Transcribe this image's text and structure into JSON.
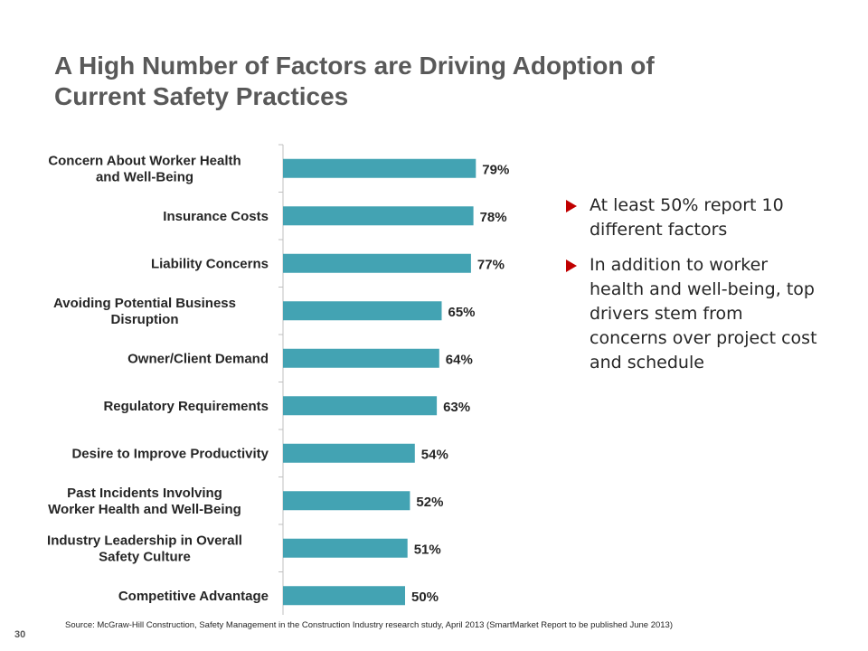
{
  "title": {
    "line1": "A High Number of Factors are Driving Adoption of",
    "line2": "Current Safety Practices"
  },
  "chart_data": {
    "type": "bar",
    "orientation": "horizontal",
    "categories": [
      [
        "Concern About Worker Health",
        "and Well-Being"
      ],
      [
        "Insurance Costs"
      ],
      [
        "Liability Concerns"
      ],
      [
        "Avoiding Potential Business",
        "Disruption"
      ],
      [
        "Owner/Client Demand"
      ],
      [
        "Regulatory Requirements"
      ],
      [
        "Desire to Improve Productivity"
      ],
      [
        "Past Incidents Involving",
        "Worker Health and Well-Being"
      ],
      [
        "Industry Leadership in Overall",
        "Safety Culture"
      ],
      [
        "Competitive Advantage"
      ]
    ],
    "values": [
      79,
      78,
      77,
      65,
      64,
      63,
      54,
      52,
      51,
      50
    ],
    "value_labels": [
      "79%",
      "78%",
      "77%",
      "65%",
      "64%",
      "63%",
      "54%",
      "52%",
      "51%",
      "50%"
    ],
    "unit": "%",
    "xlim": [
      0,
      100
    ],
    "bar_color": "#43a3b3",
    "grid": false,
    "legend": "none"
  },
  "bullets": [
    "At least 50% report 10 different factors",
    "In addition to worker health and well-being, top drivers stem from concerns over project cost and schedule"
  ],
  "bullet_color": "#c00000",
  "source": "Source: McGraw-Hill Construction, Safety Management in the Construction Industry research study, April 2013 (SmartMarket Report to be published June 2013)",
  "page_number": "30"
}
